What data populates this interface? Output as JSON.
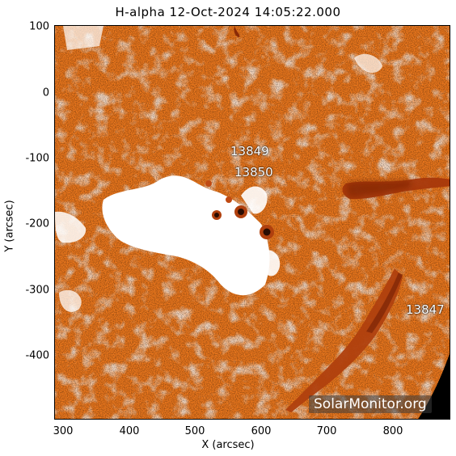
{
  "title": "H-alpha 12-Oct-2024 14:05:22.000",
  "axes": {
    "xlabel": "X (arcsec)",
    "ylabel": "Y (arcsec)",
    "x_ticks": [
      "300",
      "400",
      "500",
      "600",
      "700",
      "800"
    ],
    "y_ticks": [
      "100",
      "0",
      "-100",
      "-200",
      "-300",
      "-400"
    ]
  },
  "active_regions": [
    {
      "label": "13849"
    },
    {
      "label": "13850"
    },
    {
      "label": "13847"
    }
  ],
  "watermark": "SolarMonitor.org",
  "colors": {
    "disk_orange": "#f07a1e",
    "plage_white": "#ffffff",
    "filament_dark": "#b0400e",
    "space_black": "#000000"
  }
}
